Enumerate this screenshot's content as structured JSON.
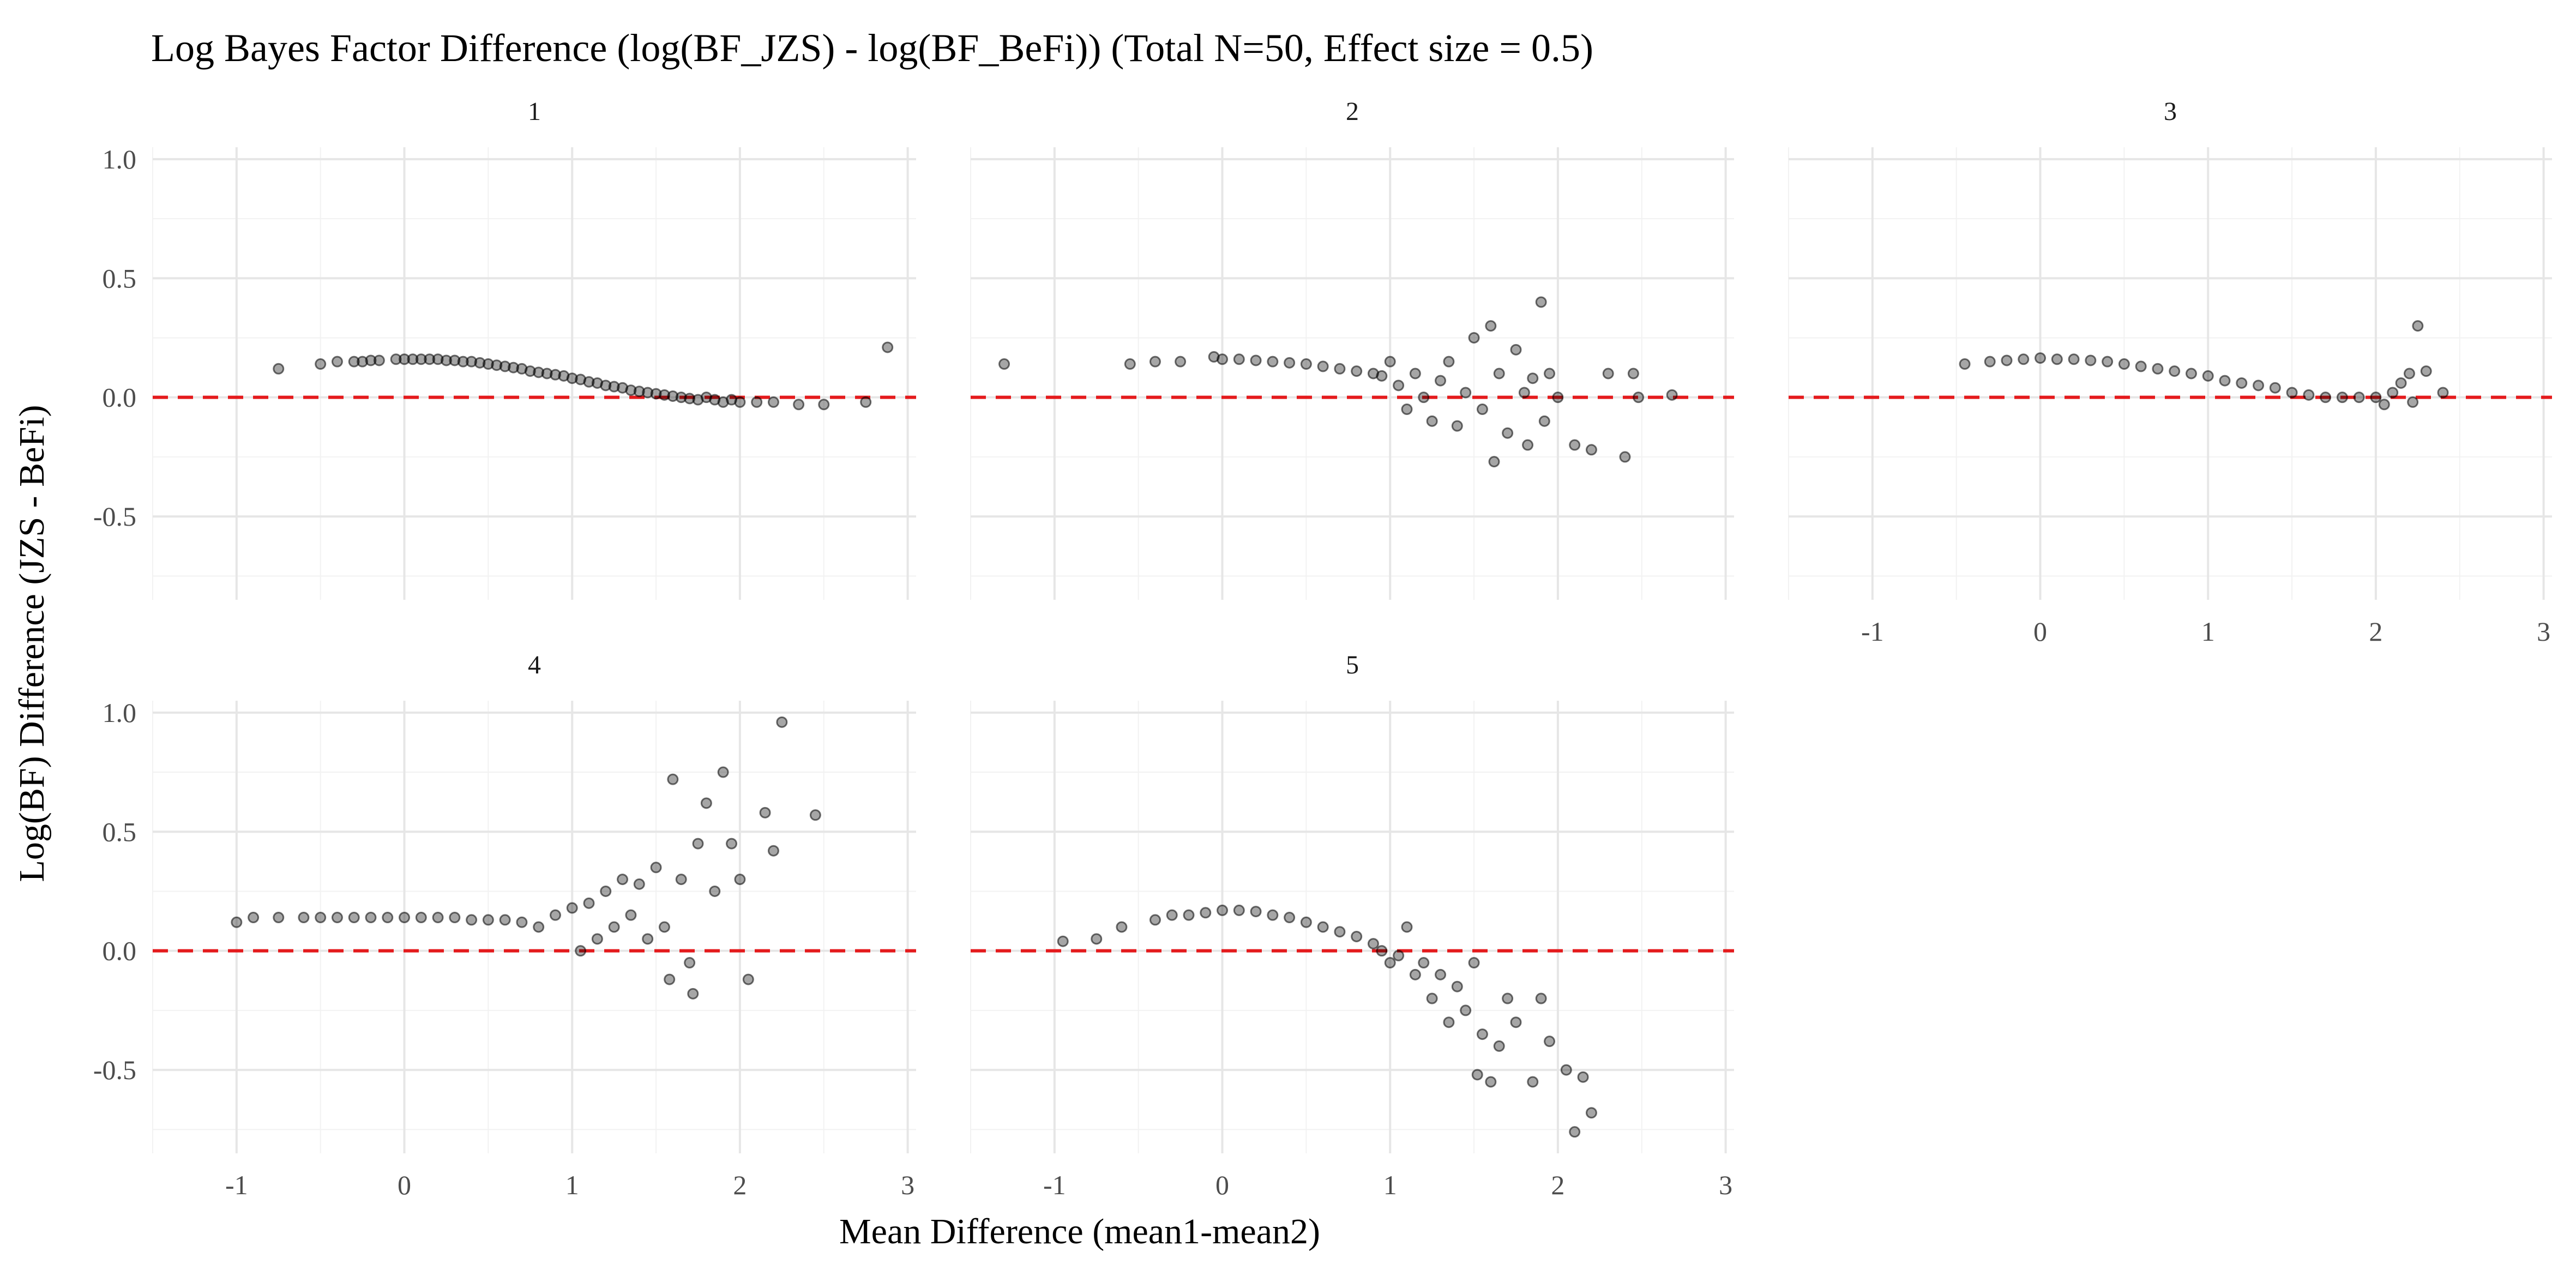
{
  "chart_data": {
    "type": "scatter",
    "title": "Log Bayes Factor Difference (log(BF_JZS) - log(BF_BeFi)) (Total N=50, Effect size = 0.5)",
    "xlabel": "Mean Difference (mean1-mean2)",
    "ylabel": "Log(BF) Difference (JZS - BeFi)",
    "xlim": [
      -1.5,
      3.05
    ],
    "ylim": [
      -0.85,
      1.05
    ],
    "x_ticks": [
      -1,
      0,
      1,
      2,
      3
    ],
    "x_tick_labels": [
      "-1",
      "0",
      "1",
      "2",
      "3"
    ],
    "y_ticks": [
      -0.5,
      0.0,
      0.5,
      1.0
    ],
    "y_tick_labels": [
      "-0.5",
      "0.0",
      "0.5",
      "1.0"
    ],
    "reference_line": {
      "y": 0,
      "style": "dashed",
      "color": "#e41a1c"
    },
    "point_color": "#000000",
    "point_alpha": 0.35,
    "grid": true,
    "facets": [
      {
        "label": "1",
        "points": [
          [
            -0.75,
            0.12
          ],
          [
            -0.5,
            0.14
          ],
          [
            -0.4,
            0.15
          ],
          [
            -0.3,
            0.15
          ],
          [
            -0.25,
            0.15
          ],
          [
            -0.2,
            0.155
          ],
          [
            -0.15,
            0.155
          ],
          [
            -0.05,
            0.16
          ],
          [
            0.0,
            0.16
          ],
          [
            0.05,
            0.16
          ],
          [
            0.1,
            0.16
          ],
          [
            0.15,
            0.16
          ],
          [
            0.2,
            0.16
          ],
          [
            0.25,
            0.155
          ],
          [
            0.3,
            0.155
          ],
          [
            0.35,
            0.15
          ],
          [
            0.4,
            0.15
          ],
          [
            0.45,
            0.145
          ],
          [
            0.5,
            0.14
          ],
          [
            0.55,
            0.135
          ],
          [
            0.6,
            0.13
          ],
          [
            0.65,
            0.125
          ],
          [
            0.7,
            0.12
          ],
          [
            0.75,
            0.11
          ],
          [
            0.8,
            0.105
          ],
          [
            0.85,
            0.1
          ],
          [
            0.9,
            0.095
          ],
          [
            0.95,
            0.09
          ],
          [
            1.0,
            0.08
          ],
          [
            1.05,
            0.075
          ],
          [
            1.1,
            0.065
          ],
          [
            1.15,
            0.06
          ],
          [
            1.2,
            0.05
          ],
          [
            1.25,
            0.045
          ],
          [
            1.3,
            0.04
          ],
          [
            1.35,
            0.03
          ],
          [
            1.4,
            0.025
          ],
          [
            1.45,
            0.02
          ],
          [
            1.5,
            0.015
          ],
          [
            1.55,
            0.01
          ],
          [
            1.6,
            0.005
          ],
          [
            1.65,
            0.0
          ],
          [
            1.7,
            -0.005
          ],
          [
            1.75,
            -0.01
          ],
          [
            1.8,
            0.0
          ],
          [
            1.85,
            -0.01
          ],
          [
            1.9,
            -0.02
          ],
          [
            1.95,
            -0.01
          ],
          [
            2.0,
            -0.02
          ],
          [
            2.1,
            -0.02
          ],
          [
            2.2,
            -0.02
          ],
          [
            2.35,
            -0.03
          ],
          [
            2.5,
            -0.03
          ],
          [
            2.75,
            -0.02
          ],
          [
            2.88,
            0.21
          ]
        ]
      },
      {
        "label": "2",
        "points": [
          [
            -1.3,
            0.14
          ],
          [
            -0.55,
            0.14
          ],
          [
            -0.4,
            0.15
          ],
          [
            -0.25,
            0.15
          ],
          [
            -0.05,
            0.17
          ],
          [
            0.0,
            0.16
          ],
          [
            0.1,
            0.16
          ],
          [
            0.2,
            0.155
          ],
          [
            0.3,
            0.15
          ],
          [
            0.4,
            0.145
          ],
          [
            0.5,
            0.14
          ],
          [
            0.6,
            0.13
          ],
          [
            0.7,
            0.12
          ],
          [
            0.8,
            0.11
          ],
          [
            0.9,
            0.1
          ],
          [
            0.95,
            0.09
          ],
          [
            1.0,
            0.15
          ],
          [
            1.05,
            0.05
          ],
          [
            1.1,
            -0.05
          ],
          [
            1.15,
            0.1
          ],
          [
            1.2,
            0.0
          ],
          [
            1.25,
            -0.1
          ],
          [
            1.3,
            0.07
          ],
          [
            1.35,
            0.15
          ],
          [
            1.4,
            -0.12
          ],
          [
            1.45,
            0.02
          ],
          [
            1.5,
            0.25
          ],
          [
            1.55,
            -0.05
          ],
          [
            1.6,
            0.3
          ],
          [
            1.62,
            -0.27
          ],
          [
            1.65,
            0.1
          ],
          [
            1.7,
            -0.15
          ],
          [
            1.75,
            0.2
          ],
          [
            1.8,
            0.02
          ],
          [
            1.82,
            -0.2
          ],
          [
            1.85,
            0.08
          ],
          [
            1.9,
            0.4
          ],
          [
            1.92,
            -0.1
          ],
          [
            1.95,
            0.1
          ],
          [
            2.0,
            0.0
          ],
          [
            2.1,
            -0.2
          ],
          [
            2.2,
            -0.22
          ],
          [
            2.3,
            0.1
          ],
          [
            2.4,
            -0.25
          ],
          [
            2.45,
            0.1
          ],
          [
            2.48,
            0.0
          ],
          [
            2.68,
            0.01
          ]
        ]
      },
      {
        "label": "3",
        "points": [
          [
            -0.45,
            0.14
          ],
          [
            -0.3,
            0.15
          ],
          [
            -0.2,
            0.155
          ],
          [
            -0.1,
            0.16
          ],
          [
            0.0,
            0.165
          ],
          [
            0.1,
            0.16
          ],
          [
            0.2,
            0.16
          ],
          [
            0.3,
            0.155
          ],
          [
            0.4,
            0.15
          ],
          [
            0.5,
            0.14
          ],
          [
            0.6,
            0.13
          ],
          [
            0.7,
            0.12
          ],
          [
            0.8,
            0.11
          ],
          [
            0.9,
            0.1
          ],
          [
            1.0,
            0.09
          ],
          [
            1.1,
            0.07
          ],
          [
            1.2,
            0.06
          ],
          [
            1.3,
            0.05
          ],
          [
            1.4,
            0.04
          ],
          [
            1.5,
            0.02
          ],
          [
            1.6,
            0.01
          ],
          [
            1.7,
            0.0
          ],
          [
            1.8,
            0.0
          ],
          [
            1.9,
            0.0
          ],
          [
            2.0,
            0.0
          ],
          [
            2.05,
            -0.03
          ],
          [
            2.1,
            0.02
          ],
          [
            2.15,
            0.06
          ],
          [
            2.2,
            0.1
          ],
          [
            2.22,
            -0.02
          ],
          [
            2.25,
            0.3
          ],
          [
            2.3,
            0.11
          ],
          [
            2.4,
            0.02
          ]
        ]
      },
      {
        "label": "4",
        "points": [
          [
            -1.0,
            0.12
          ],
          [
            -0.9,
            0.14
          ],
          [
            -0.75,
            0.14
          ],
          [
            -0.6,
            0.14
          ],
          [
            -0.5,
            0.14
          ],
          [
            -0.4,
            0.14
          ],
          [
            -0.3,
            0.14
          ],
          [
            -0.2,
            0.14
          ],
          [
            -0.1,
            0.14
          ],
          [
            0.0,
            0.14
          ],
          [
            0.1,
            0.14
          ],
          [
            0.2,
            0.14
          ],
          [
            0.3,
            0.14
          ],
          [
            0.4,
            0.13
          ],
          [
            0.5,
            0.13
          ],
          [
            0.6,
            0.13
          ],
          [
            0.7,
            0.12
          ],
          [
            0.8,
            0.1
          ],
          [
            0.9,
            0.15
          ],
          [
            1.0,
            0.18
          ],
          [
            1.05,
            0.0
          ],
          [
            1.1,
            0.2
          ],
          [
            1.15,
            0.05
          ],
          [
            1.2,
            0.25
          ],
          [
            1.25,
            0.1
          ],
          [
            1.3,
            0.3
          ],
          [
            1.35,
            0.15
          ],
          [
            1.4,
            0.28
          ],
          [
            1.45,
            0.05
          ],
          [
            1.5,
            0.35
          ],
          [
            1.55,
            0.1
          ],
          [
            1.58,
            -0.12
          ],
          [
            1.6,
            0.72
          ],
          [
            1.65,
            0.3
          ],
          [
            1.7,
            -0.05
          ],
          [
            1.72,
            -0.18
          ],
          [
            1.75,
            0.45
          ],
          [
            1.8,
            0.62
          ],
          [
            1.85,
            0.25
          ],
          [
            1.9,
            0.75
          ],
          [
            1.95,
            0.45
          ],
          [
            2.0,
            0.3
          ],
          [
            2.05,
            -0.12
          ],
          [
            2.15,
            0.58
          ],
          [
            2.2,
            0.42
          ],
          [
            2.25,
            0.96
          ],
          [
            2.45,
            0.57
          ]
        ]
      },
      {
        "label": "5",
        "points": [
          [
            -0.95,
            0.04
          ],
          [
            -0.75,
            0.05
          ],
          [
            -0.6,
            0.1
          ],
          [
            -0.4,
            0.13
          ],
          [
            -0.3,
            0.15
          ],
          [
            -0.2,
            0.15
          ],
          [
            -0.1,
            0.16
          ],
          [
            0.0,
            0.17
          ],
          [
            0.1,
            0.17
          ],
          [
            0.2,
            0.165
          ],
          [
            0.3,
            0.15
          ],
          [
            0.4,
            0.14
          ],
          [
            0.5,
            0.12
          ],
          [
            0.6,
            0.1
          ],
          [
            0.7,
            0.08
          ],
          [
            0.8,
            0.06
          ],
          [
            0.9,
            0.03
          ],
          [
            0.95,
            0.0
          ],
          [
            1.0,
            -0.05
          ],
          [
            1.05,
            -0.02
          ],
          [
            1.1,
            0.1
          ],
          [
            1.15,
            -0.1
          ],
          [
            1.2,
            -0.05
          ],
          [
            1.25,
            -0.2
          ],
          [
            1.3,
            -0.1
          ],
          [
            1.35,
            -0.3
          ],
          [
            1.4,
            -0.15
          ],
          [
            1.45,
            -0.25
          ],
          [
            1.5,
            -0.05
          ],
          [
            1.52,
            -0.52
          ],
          [
            1.55,
            -0.35
          ],
          [
            1.6,
            -0.55
          ],
          [
            1.65,
            -0.4
          ],
          [
            1.7,
            -0.2
          ],
          [
            1.75,
            -0.3
          ],
          [
            1.85,
            -0.55
          ],
          [
            1.9,
            -0.2
          ],
          [
            1.95,
            -0.38
          ],
          [
            2.05,
            -0.5
          ],
          [
            2.15,
            -0.53
          ],
          [
            2.1,
            -0.76
          ],
          [
            2.2,
            -0.68
          ]
        ]
      }
    ]
  }
}
